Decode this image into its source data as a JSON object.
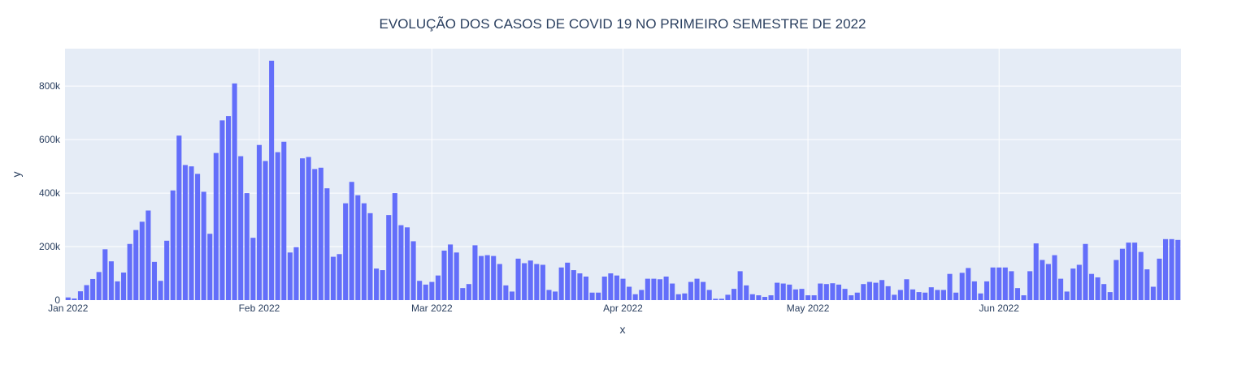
{
  "chart_data": {
    "type": "bar",
    "title": "EVOLUÇÃO DOS CASOS DE COVID 19 NO PRIMEIRO SEMESTRE DE 2022",
    "xlabel": "x",
    "ylabel": "y",
    "x_start": "2022-01-01",
    "x_end": "2022-06-30",
    "ylim": [
      0,
      940000
    ],
    "y_ticks": [
      0,
      200000,
      400000,
      600000,
      800000
    ],
    "y_tick_labels": [
      "0",
      "200k",
      "400k",
      "600k",
      "800k"
    ],
    "x_ticks": [
      "2022-01-01",
      "2022-02-01",
      "2022-03-01",
      "2022-04-01",
      "2022-05-01",
      "2022-06-01"
    ],
    "x_tick_labels": [
      "Jan 2022",
      "Feb 2022",
      "Mar 2022",
      "Apr 2022",
      "May 2022",
      "Jun 2022"
    ],
    "bar_color": "#636efa",
    "plot_bg": "#e5ecf6",
    "grid_color": "#ffffff",
    "grid": true,
    "dates": [
      "2022-01-01",
      "2022-01-02",
      "2022-01-03",
      "2022-01-04",
      "2022-01-05",
      "2022-01-06",
      "2022-01-07",
      "2022-01-08",
      "2022-01-09",
      "2022-01-10",
      "2022-01-11",
      "2022-01-12",
      "2022-01-13",
      "2022-01-14",
      "2022-01-15",
      "2022-01-16",
      "2022-01-17",
      "2022-01-18",
      "2022-01-19",
      "2022-01-20",
      "2022-01-21",
      "2022-01-22",
      "2022-01-23",
      "2022-01-24",
      "2022-01-25",
      "2022-01-26",
      "2022-01-27",
      "2022-01-28",
      "2022-01-29",
      "2022-01-30",
      "2022-01-31",
      "2022-02-01",
      "2022-02-02",
      "2022-02-03",
      "2022-02-04",
      "2022-02-05",
      "2022-02-06",
      "2022-02-07",
      "2022-02-08",
      "2022-02-09",
      "2022-02-10",
      "2022-02-11",
      "2022-02-12",
      "2022-02-13",
      "2022-02-14",
      "2022-02-15",
      "2022-02-16",
      "2022-02-17",
      "2022-02-18",
      "2022-02-19",
      "2022-02-20",
      "2022-02-21",
      "2022-02-22",
      "2022-02-23",
      "2022-02-24",
      "2022-02-25",
      "2022-02-26",
      "2022-02-27",
      "2022-02-28",
      "2022-03-01",
      "2022-03-02",
      "2022-03-03",
      "2022-03-04",
      "2022-03-05",
      "2022-03-06",
      "2022-03-07",
      "2022-03-08",
      "2022-03-09",
      "2022-03-10",
      "2022-03-11",
      "2022-03-12",
      "2022-03-13",
      "2022-03-14",
      "2022-03-15",
      "2022-03-16",
      "2022-03-17",
      "2022-03-18",
      "2022-03-19",
      "2022-03-20",
      "2022-03-21",
      "2022-03-22",
      "2022-03-23",
      "2022-03-24",
      "2022-03-25",
      "2022-03-26",
      "2022-03-27",
      "2022-03-28",
      "2022-03-29",
      "2022-03-30",
      "2022-03-31",
      "2022-04-01",
      "2022-04-02",
      "2022-04-03",
      "2022-04-04",
      "2022-04-05",
      "2022-04-06",
      "2022-04-07",
      "2022-04-08",
      "2022-04-09",
      "2022-04-10",
      "2022-04-11",
      "2022-04-12",
      "2022-04-13",
      "2022-04-14",
      "2022-04-15",
      "2022-04-16",
      "2022-04-17",
      "2022-04-18",
      "2022-04-19",
      "2022-04-20",
      "2022-04-21",
      "2022-04-22",
      "2022-04-23",
      "2022-04-24",
      "2022-04-25",
      "2022-04-26",
      "2022-04-27",
      "2022-04-28",
      "2022-04-29",
      "2022-04-30",
      "2022-05-01",
      "2022-05-02",
      "2022-05-03",
      "2022-05-04",
      "2022-05-05",
      "2022-05-06",
      "2022-05-07",
      "2022-05-08",
      "2022-05-09",
      "2022-05-10",
      "2022-05-11",
      "2022-05-12",
      "2022-05-13",
      "2022-05-14",
      "2022-05-15",
      "2022-05-16",
      "2022-05-17",
      "2022-05-18",
      "2022-05-19",
      "2022-05-20",
      "2022-05-21",
      "2022-05-22",
      "2022-05-23",
      "2022-05-24",
      "2022-05-25",
      "2022-05-26",
      "2022-05-27",
      "2022-05-28",
      "2022-05-29",
      "2022-05-30",
      "2022-05-31",
      "2022-06-01",
      "2022-06-02",
      "2022-06-03",
      "2022-06-04",
      "2022-06-05",
      "2022-06-06",
      "2022-06-07",
      "2022-06-08",
      "2022-06-09",
      "2022-06-10",
      "2022-06-11",
      "2022-06-12",
      "2022-06-13",
      "2022-06-14",
      "2022-06-15",
      "2022-06-16",
      "2022-06-17",
      "2022-06-18",
      "2022-06-19",
      "2022-06-20",
      "2022-06-21",
      "2022-06-22",
      "2022-06-23",
      "2022-06-24",
      "2022-06-25",
      "2022-06-26",
      "2022-06-27",
      "2022-06-28",
      "2022-06-29",
      "2022-06-30"
    ],
    "values": [
      10000,
      6000,
      33000,
      56000,
      79000,
      105000,
      190000,
      145000,
      70000,
      103000,
      210000,
      262000,
      293000,
      335000,
      143000,
      72000,
      222000,
      410000,
      615000,
      505000,
      500000,
      472000,
      405000,
      248000,
      550000,
      672000,
      688000,
      810000,
      538000,
      400000,
      233000,
      580000,
      520000,
      895000,
      553000,
      592000,
      178000,
      198000,
      530000,
      535000,
      490000,
      495000,
      418000,
      162000,
      172000,
      362000,
      442000,
      392000,
      362000,
      325000,
      118000,
      112000,
      318000,
      400000,
      280000,
      272000,
      220000,
      72000,
      58000,
      68000,
      92000,
      185000,
      208000,
      178000,
      45000,
      60000,
      205000,
      165000,
      168000,
      165000,
      135000,
      55000,
      32000,
      155000,
      138000,
      148000,
      135000,
      132000,
      38000,
      32000,
      122000,
      140000,
      112000,
      100000,
      88000,
      28000,
      28000,
      88000,
      100000,
      92000,
      80000,
      50000,
      22000,
      38000,
      80000,
      80000,
      78000,
      88000,
      62000,
      22000,
      25000,
      68000,
      80000,
      68000,
      38000,
      5000,
      5000,
      20000,
      42000,
      108000,
      55000,
      22000,
      18000,
      12000,
      18000,
      65000,
      62000,
      58000,
      40000,
      42000,
      18000,
      18000,
      62000,
      60000,
      63000,
      58000,
      42000,
      18000,
      28000,
      60000,
      68000,
      65000,
      75000,
      52000,
      20000,
      38000,
      78000,
      40000,
      30000,
      28000,
      48000,
      38000,
      38000,
      98000,
      28000,
      102000,
      120000,
      70000,
      25000,
      70000,
      122000,
      122000,
      122000,
      108000,
      45000,
      18000,
      108000,
      212000,
      150000,
      135000,
      168000,
      80000,
      32000,
      118000,
      132000,
      210000,
      98000,
      85000,
      60000,
      30000,
      150000,
      192000,
      215000,
      215000,
      180000,
      115000,
      50000,
      155000,
      228000,
      228000,
      225000
    ]
  }
}
